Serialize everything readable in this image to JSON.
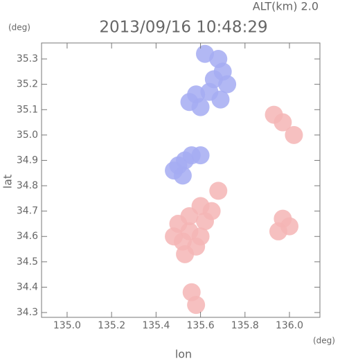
{
  "chart_data": {
    "type": "scatter",
    "header": "ALT(km)  2.0",
    "title": "2013/09/16 10:48:29",
    "x_label": "lon",
    "y_label": "lat",
    "x_unit": "(deg)",
    "y_unit": "(deg)",
    "xlim": [
      134.885,
      136.137
    ],
    "ylim": [
      34.281,
      35.363
    ],
    "xticks": [
      {
        "value": 135,
        "label": "135.0"
      },
      {
        "value": 135.2,
        "label": "135.2"
      },
      {
        "value": 135.4,
        "label": "135.4"
      },
      {
        "value": 135.6,
        "label": "135.6"
      },
      {
        "value": 135.8,
        "label": "135.8"
      },
      {
        "value": 136,
        "label": "136.0"
      }
    ],
    "yticks": [
      {
        "value": 34.3,
        "label": "34.3"
      },
      34.4,
      34.5,
      34.6,
      34.7,
      34.8,
      34.9,
      {
        "value": 35,
        "label": "35.0"
      },
      35.1,
      35.2,
      35.3
    ],
    "series": [
      {
        "color": "#a4abf2",
        "x": [
          135.62,
          135.68,
          135.7,
          135.66,
          135.72,
          135.64,
          135.58,
          135.55,
          135.6,
          135.69,
          135.53,
          135.5,
          135.48,
          135.56,
          135.6,
          135.52
        ],
        "values": [
          35.32,
          35.3,
          35.25,
          35.22,
          35.2,
          35.17,
          35.16,
          35.13,
          35.11,
          35.14,
          34.9,
          34.88,
          34.86,
          34.92,
          34.92,
          34.84
        ]
      },
      {
        "color": "#f5b5b5",
        "x": [
          135.5,
          135.55,
          135.52,
          135.58,
          135.48,
          135.55,
          135.62,
          135.6,
          135.53,
          135.6,
          135.65,
          135.97,
          136.0,
          135.95,
          135.97,
          136.02,
          135.93,
          135.56,
          135.58,
          135.68
        ],
        "values": [
          34.65,
          34.62,
          34.58,
          34.56,
          34.6,
          34.68,
          34.66,
          34.6,
          34.53,
          34.72,
          34.7,
          34.67,
          34.64,
          34.62,
          35.05,
          35.0,
          35.08,
          34.38,
          34.33,
          34.78
        ]
      }
    ]
  }
}
